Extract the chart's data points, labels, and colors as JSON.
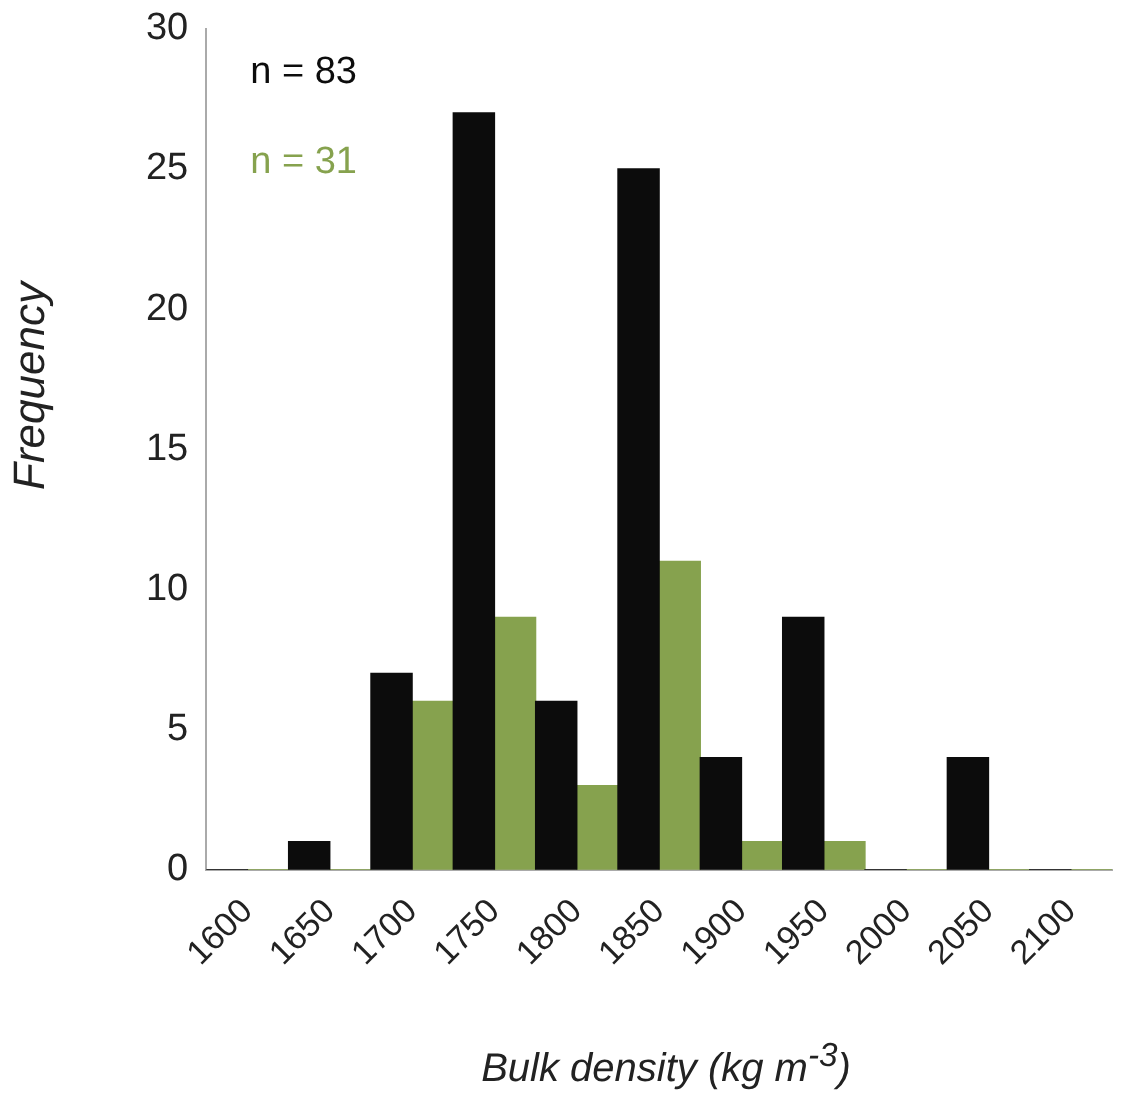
{
  "chart_data": {
    "type": "bar",
    "xlabel": "Bulk density (kg m$^{-3}$)",
    "ylabel": "Frequency",
    "categories": [
      "1600",
      "1650",
      "1700",
      "1750",
      "1800",
      "1850",
      "1900",
      "1950",
      "2000",
      "2050",
      "2100"
    ],
    "series": [
      {
        "name": "n = 83",
        "color": "#0c0c0c",
        "values": [
          0,
          1,
          7,
          27,
          6,
          25,
          4,
          9,
          0,
          4,
          0
        ]
      },
      {
        "name": "n = 31",
        "color": "#86a24e",
        "values": [
          0,
          0,
          6,
          9,
          3,
          11,
          1,
          1,
          0,
          0,
          0
        ]
      }
    ],
    "ylim": [
      0,
      30
    ],
    "yticks": [
      0,
      5,
      10,
      15,
      20,
      25,
      30
    ],
    "grid": false,
    "legend": "top left"
  }
}
